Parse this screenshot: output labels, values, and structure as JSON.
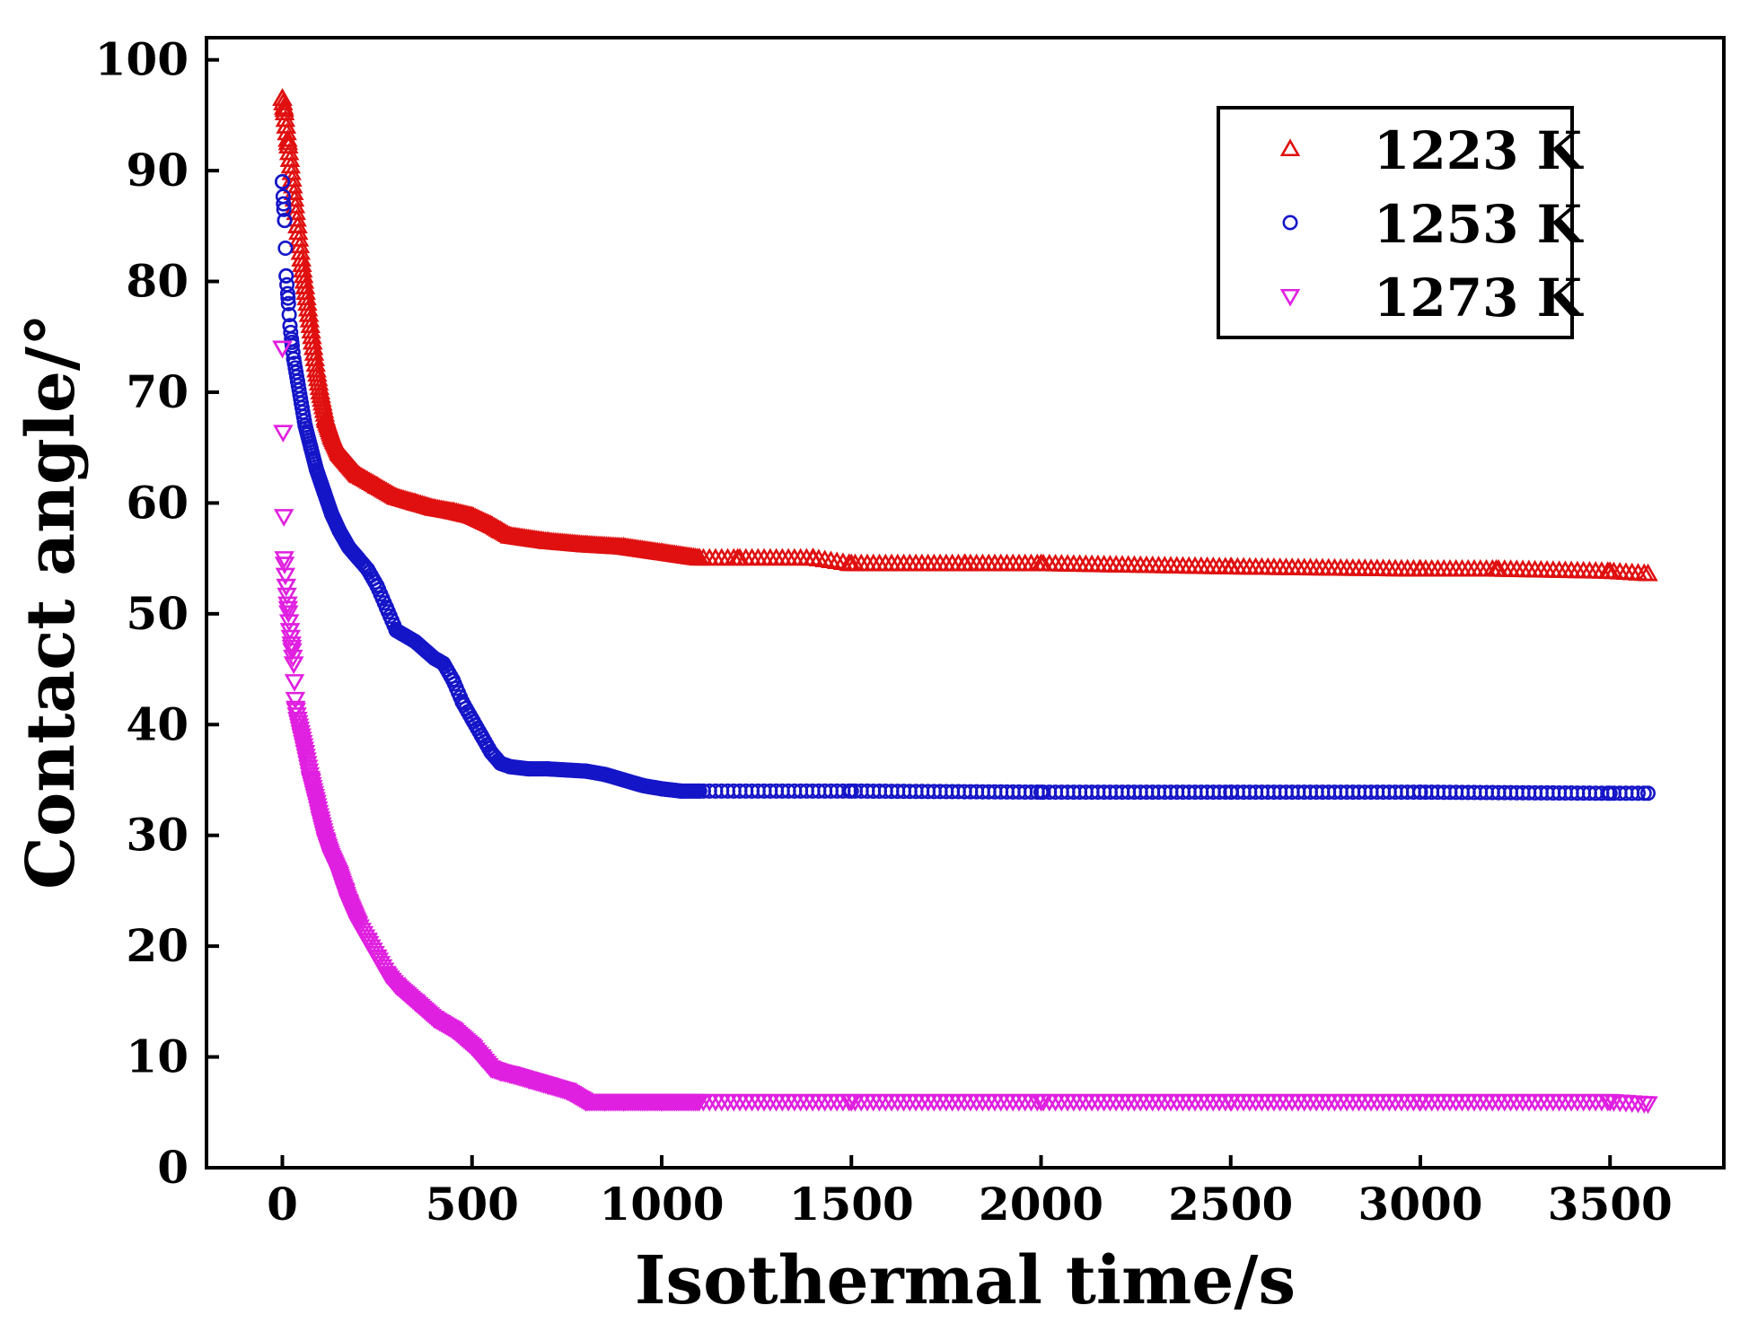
{
  "chart_data": {
    "type": "scatter",
    "title": "",
    "xlabel": "Isothermal time/s",
    "ylabel": "Contact angle/°",
    "xlim": [
      -200,
      3800
    ],
    "ylim": [
      0,
      102
    ],
    "xticks": [
      0,
      500,
      1000,
      1500,
      2000,
      2500,
      3000,
      3500
    ],
    "yticks": [
      0,
      10,
      20,
      30,
      40,
      50,
      60,
      70,
      80,
      90,
      100
    ],
    "legend_position": "top-right",
    "series": [
      {
        "name": "1223 K",
        "color": "#e01010",
        "marker": "triangle-up",
        "x": [
          0,
          5,
          10,
          15,
          20,
          30,
          40,
          50,
          60,
          70,
          80,
          90,
          100,
          115,
          130,
          150,
          175,
          200,
          250,
          300,
          350,
          400,
          450,
          500,
          550,
          575,
          600,
          700,
          800,
          900,
          1000,
          1100,
          1200,
          1400,
          1500,
          1800,
          2000,
          2500,
          3000,
          3200,
          3500,
          3600
        ],
        "values": [
          96.5,
          95.5,
          94,
          92.5,
          91,
          88,
          85,
          82,
          79.5,
          77,
          74.5,
          72,
          70,
          67.5,
          66,
          64.5,
          63.5,
          62.5,
          61.5,
          60.5,
          60,
          59.5,
          59.2,
          58.8,
          58,
          57.5,
          57,
          56.5,
          56.2,
          56,
          55.5,
          55,
          55,
          55,
          54.5,
          54.5,
          54.5,
          54.2,
          54,
          54,
          53.8,
          53.6
        ]
      },
      {
        "name": "1253 K",
        "color": "#1515c8",
        "marker": "circle",
        "x": [
          0,
          3,
          6,
          10,
          15,
          20,
          25,
          30,
          40,
          50,
          60,
          75,
          90,
          110,
          130,
          150,
          175,
          200,
          225,
          250,
          275,
          300,
          350,
          400,
          425,
          450,
          475,
          500,
          525,
          550,
          575,
          600,
          650,
          700,
          800,
          850,
          900,
          950,
          1000,
          1050,
          1100,
          1500,
          2000,
          2500,
          3000,
          3500,
          3600
        ],
        "values": [
          89,
          87,
          85.5,
          80.5,
          78.5,
          76,
          74.5,
          73,
          71,
          69,
          67,
          65,
          63,
          61,
          59,
          57.5,
          56,
          55,
          54,
          52.5,
          50.5,
          48.5,
          47.5,
          46,
          45.5,
          44,
          42,
          40.5,
          39,
          37.5,
          36.5,
          36.2,
          36,
          36,
          35.8,
          35.5,
          35,
          34.5,
          34.2,
          34,
          34,
          34,
          33.9,
          33.9,
          33.9,
          33.8,
          33.8
        ]
      },
      {
        "name": "1273 K",
        "color": "#e020e0",
        "marker": "triangle-down",
        "x": [
          0,
          5,
          10,
          15,
          20,
          25,
          30,
          35,
          40,
          50,
          60,
          75,
          90,
          100,
          115,
          130,
          150,
          165,
          175,
          200,
          225,
          250,
          275,
          300,
          350,
          400,
          450,
          500,
          525,
          550,
          575,
          600,
          650,
          700,
          750,
          800,
          850,
          900,
          1000,
          1500,
          2000,
          2500,
          3000,
          3500,
          3600
        ],
        "values": [
          74,
          55,
          52.5,
          50.5,
          48.5,
          47,
          45.5,
          41.5,
          40.5,
          39,
          37.5,
          35,
          33,
          31.5,
          29.5,
          28,
          26.5,
          25,
          24,
          22,
          20.5,
          19,
          17.5,
          16.5,
          15,
          13.5,
          12.5,
          11,
          10,
          9,
          8.7,
          8.5,
          8,
          7.5,
          7,
          6,
          6,
          6,
          6,
          6,
          6,
          6,
          6,
          6,
          5.8
        ]
      }
    ]
  }
}
